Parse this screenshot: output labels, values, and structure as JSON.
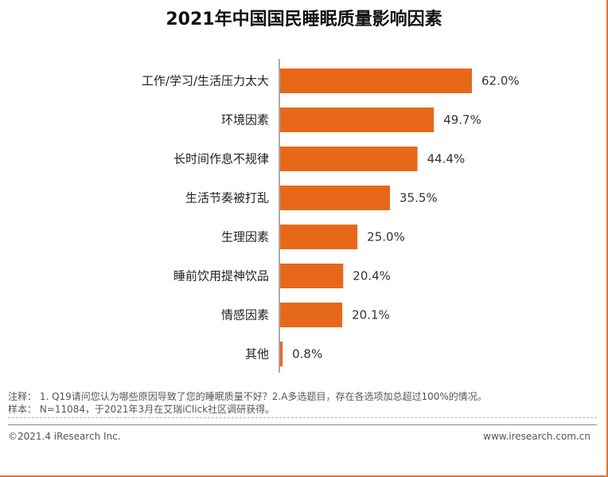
{
  "title": "2021年中国国民睡眠质量影响因素",
  "chart_data": {
    "type": "bar",
    "orientation": "horizontal",
    "categories": [
      "工作/学习/生活压力太大",
      "环境因素",
      "长时间作息不规律",
      "生活节奏被打乱",
      "生理因素",
      "睡前饮用提神饮品",
      "情感因素",
      "其他"
    ],
    "values": [
      62.0,
      49.7,
      44.4,
      35.5,
      25.0,
      20.4,
      20.1,
      0.8
    ],
    "value_labels": [
      "62.0%",
      "49.7%",
      "44.4%",
      "35.5%",
      "25.0%",
      "20.4%",
      "20.1%",
      "0.8%"
    ],
    "xlim": [
      0,
      100
    ],
    "bar_color": "#e8681a",
    "grid": false
  },
  "notes": {
    "line1": "注释： 1. Q19请问您认为哪些原因导致了您的睡眠质量不好？2.A多选题目，存在各选项加总超过100%的情况。",
    "line2": "样本： N=11084，于2021年3月在艾瑞iClick社区调研获得。"
  },
  "footer": {
    "copyright": "©2021.4 iResearch Inc.",
    "website": "www.iresearch.com.cn"
  }
}
